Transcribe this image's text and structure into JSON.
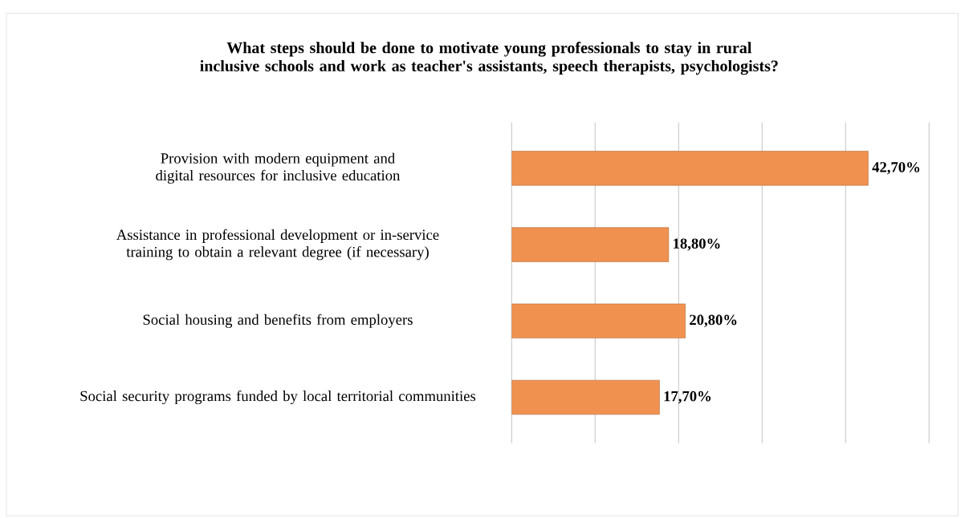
{
  "chart_data": {
    "type": "bar",
    "orientation": "horizontal",
    "title": "What steps should be done to motivate young professionals to stay in rural inclusive schools and work as teacher's assistants, speech therapists, psychologists?",
    "categories": [
      "Provision with modern equipment and digital resources for inclusive education",
      "Assistance in professional development or in-service training to obtain a relevant degree (if necessary)",
      "Social housing and benefits from employers",
      "Social security programs funded by local territorial communities"
    ],
    "values": [
      42.7,
      18.8,
      20.8,
      17.7
    ],
    "value_labels": [
      "42,70%",
      "18,80%",
      "20,80%",
      "17,70%"
    ],
    "color": "#f0914f",
    "xlim": [
      0,
      50
    ],
    "xticks": [
      {
        "value": 0,
        "label": null
      },
      {
        "value": 10,
        "label": null
      },
      {
        "value": 20,
        "label": null
      },
      {
        "value": 30,
        "label": null
      },
      {
        "value": 40,
        "label": null
      },
      {
        "value": 50,
        "label": null
      }
    ],
    "grid": "x",
    "tick_labels": "y"
  }
}
